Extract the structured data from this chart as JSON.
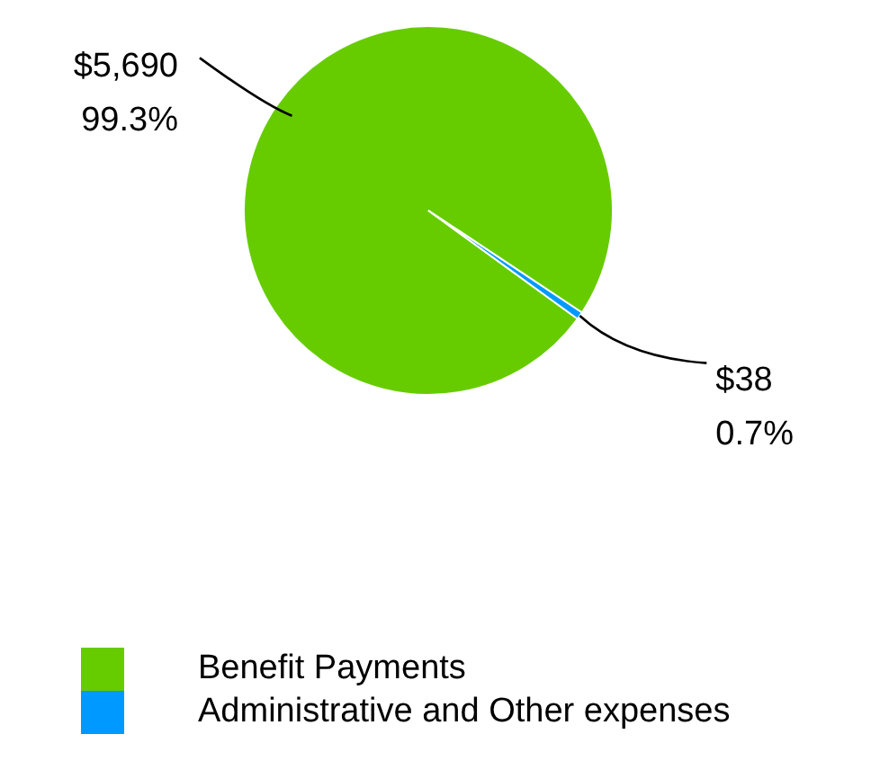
{
  "chart_data": {
    "type": "pie",
    "categories": [
      "Benefit Payments",
      "Administrative and Other expenses"
    ],
    "values": [
      5690,
      38
    ],
    "colors": [
      "#66cc00",
      "#0099ff"
    ],
    "value_labels": [
      "$5,690\n99.3%",
      "$38\n0.7%"
    ],
    "legend": "bottom left"
  }
}
